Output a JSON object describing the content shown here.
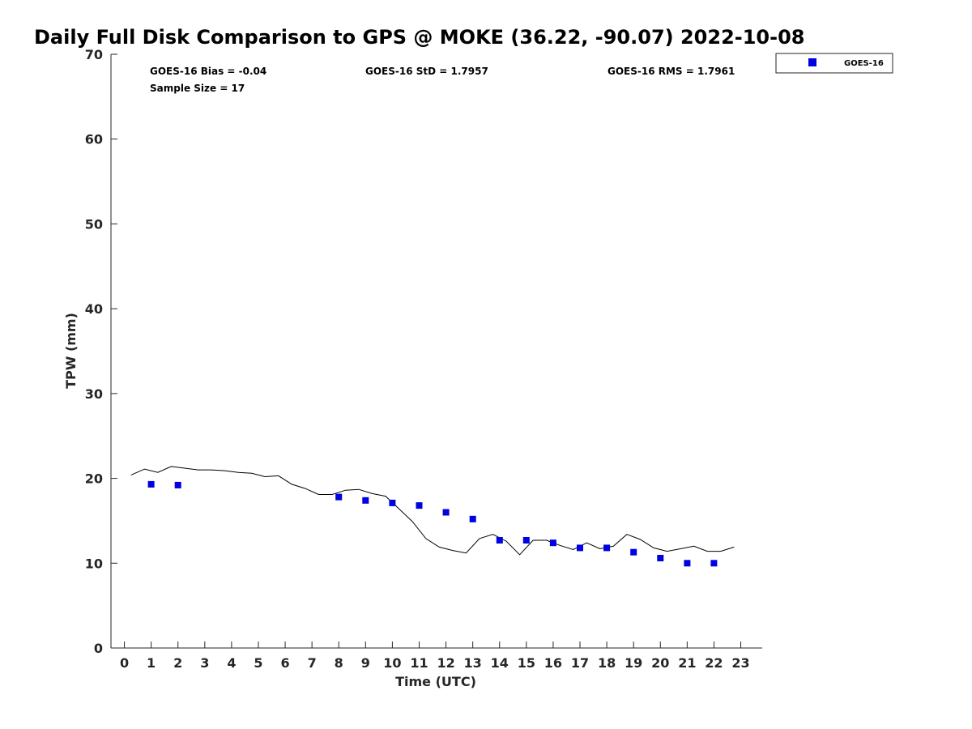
{
  "chart_data": {
    "type": "scatter",
    "title": "Daily Full Disk Comparison to GPS @ MOKE (36.22, -90.07) 2022-10-08",
    "xlabel": "Time (UTC)",
    "ylabel": "TPW (mm)",
    "xlim": [
      -0.5,
      23.8
    ],
    "ylim": [
      0,
      70
    ],
    "x_ticks": [
      "0",
      "1",
      "2",
      "3",
      "4",
      "5",
      "6",
      "7",
      "8",
      "9",
      "10",
      "11",
      "12",
      "13",
      "14",
      "15",
      "16",
      "17",
      "18",
      "19",
      "20",
      "21",
      "22",
      "23"
    ],
    "y_ticks": [
      "0",
      "10",
      "20",
      "30",
      "40",
      "50",
      "60",
      "70"
    ],
    "grid": false,
    "legend_position": "outside top-right",
    "stats": {
      "bias": "GOES-16 Bias = -0.04",
      "std": "GOES-16 StD = 1.7957",
      "rms": "GOES-16 RMS = 1.7961",
      "sample_size": "Sample Size = 17"
    },
    "series": [
      {
        "name": "GOES-16",
        "kind": "scatter",
        "marker": "square",
        "color": "#0000e0",
        "x": [
          1,
          2,
          8,
          9,
          10,
          11,
          12,
          13,
          14,
          15,
          16,
          17,
          18,
          19,
          20,
          21,
          22
        ],
        "y": [
          19.3,
          19.2,
          17.8,
          17.4,
          17.1,
          16.8,
          16.0,
          15.2,
          12.7,
          12.7,
          12.4,
          11.8,
          11.8,
          11.3,
          10.6,
          10.0,
          10.0
        ]
      },
      {
        "kind": "line",
        "color": "#000000",
        "x": [
          0.25,
          0.75,
          1.25,
          1.75,
          2.25,
          2.75,
          3.25,
          3.75,
          4.25,
          4.75,
          5.25,
          5.75,
          6.25,
          6.75,
          7.25,
          7.75,
          8.25,
          8.75,
          9.25,
          9.75,
          10.25,
          10.75,
          11.25,
          11.75,
          12.25,
          12.75,
          13.25,
          13.75,
          14.25,
          14.75,
          15.25,
          15.75,
          16.25,
          16.75,
          17.25,
          17.75,
          18.25,
          18.75,
          19.25,
          19.75,
          20.25,
          20.75,
          21.25,
          21.75,
          22.25,
          22.75
        ],
        "y": [
          20.4,
          21.1,
          20.7,
          21.4,
          21.2,
          21.0,
          21.0,
          20.9,
          20.7,
          20.6,
          20.2,
          20.3,
          19.3,
          18.8,
          18.1,
          18.1,
          18.6,
          18.7,
          18.2,
          17.9,
          16.4,
          14.9,
          12.9,
          11.9,
          11.5,
          11.2,
          12.9,
          13.4,
          12.6,
          11.0,
          12.7,
          12.7,
          12.1,
          11.6,
          12.4,
          11.7,
          12.0,
          13.4,
          12.8,
          11.8,
          11.4,
          11.7,
          12.0,
          11.4,
          11.4,
          11.9
        ]
      }
    ]
  }
}
